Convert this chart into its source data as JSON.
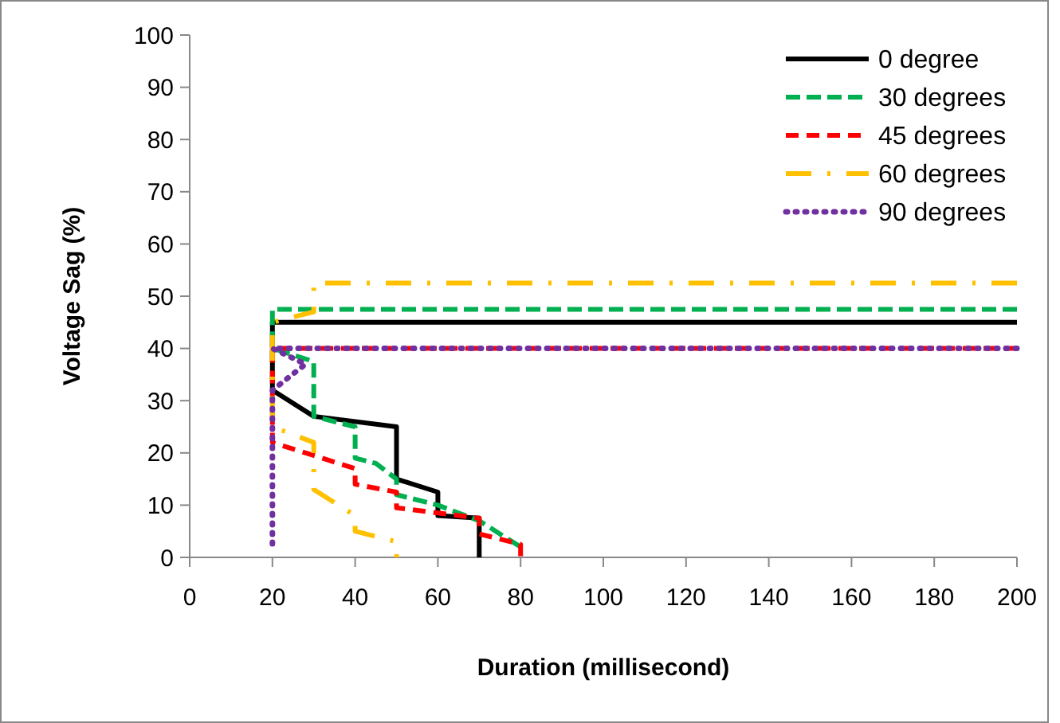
{
  "chart_data": {
    "type": "line",
    "xlabel": "Duration (millisecond)",
    "ylabel": "Voltage Sag (%)",
    "xlim": [
      0,
      200
    ],
    "ylim": [
      0,
      100
    ],
    "xticks": [
      0,
      20,
      40,
      60,
      80,
      100,
      120,
      140,
      160,
      180,
      200
    ],
    "yticks": [
      0,
      10,
      20,
      30,
      40,
      50,
      60,
      70,
      80,
      90,
      100
    ],
    "grid": false,
    "legend": "top right",
    "series": [
      {
        "name": "0 degree",
        "color": "#000000",
        "line_style": "solid",
        "x": [
          200,
          20,
          20,
          30,
          50,
          50,
          60,
          60,
          70,
          70
        ],
        "values": [
          45,
          45,
          32,
          27,
          25,
          15,
          12.5,
          8,
          7.5,
          0
        ]
      },
      {
        "name": "30 degrees",
        "color": "#00b050",
        "line_style": "dashed",
        "x": [
          200,
          20,
          20,
          30,
          30,
          40,
          40,
          45,
          50,
          50,
          60,
          70,
          80
        ],
        "values": [
          47.5,
          47.5,
          40,
          37.5,
          27,
          25,
          19,
          18,
          15,
          12,
          10,
          7,
          2
        ]
      },
      {
        "name": "45 degrees",
        "color": "#ff0000",
        "line_style": "dashed",
        "x": [
          200,
          20,
          20,
          40,
          40,
          50,
          50,
          70,
          70,
          80,
          80
        ],
        "values": [
          40,
          40,
          22,
          17,
          14,
          12.5,
          9.5,
          7.5,
          4.5,
          2.5,
          0
        ]
      },
      {
        "name": "60 degrees",
        "color": "#ffc000",
        "line_style": "dashed",
        "x": [
          200,
          30,
          30,
          20,
          20,
          30,
          30,
          40,
          40,
          50,
          50
        ],
        "values": [
          52.5,
          52.5,
          47,
          45,
          25,
          22,
          13,
          8,
          5,
          3,
          0
        ]
      },
      {
        "name": "90 degrees",
        "color": "#7030a0",
        "line_style": "dotted",
        "x": [
          200,
          20,
          28,
          20,
          20
        ],
        "values": [
          40,
          40,
          37,
          32,
          2
        ]
      }
    ]
  }
}
